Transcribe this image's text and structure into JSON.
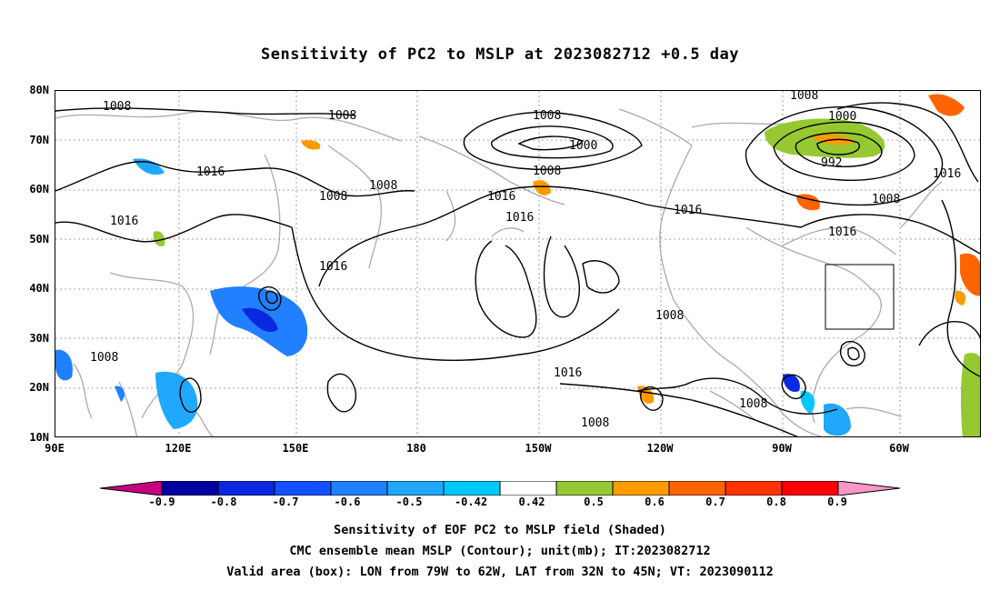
{
  "title": "Sensitivity of PC2 to MSLP at 2023082712 +0.5 day",
  "lat_ticks": [
    "80N",
    "70N",
    "60N",
    "50N",
    "40N",
    "30N",
    "20N",
    "10N"
  ],
  "lon_ticks": [
    "90E",
    "120E",
    "150E",
    "180",
    "150W",
    "120W",
    "90W",
    "60W"
  ],
  "contour_labels": [
    "1008",
    "1008",
    "1016",
    "1016",
    "1008",
    "1008",
    "1008",
    "1000",
    "1008",
    "1016",
    "1016",
    "1016",
    "1008",
    "1000",
    "992",
    "1008",
    "1016",
    "1016",
    "1008",
    "1016",
    "1008",
    "1008"
  ],
  "colorbar": {
    "ticks": [
      "-0.9",
      "-0.8",
      "-0.7",
      "-0.6",
      "-0.5",
      "-0.42",
      "0.42",
      "0.5",
      "0.6",
      "0.7",
      "0.8",
      "0.9"
    ],
    "colors": [
      "#0000a0",
      "#0a28e0",
      "#1450ff",
      "#2080ff",
      "#20a8ff",
      "#00c8ff",
      "#ffffff",
      "#96c832",
      "#ff9b00",
      "#ff6400",
      "#ff3200",
      "#ff0000"
    ],
    "low_color": "#c8007d",
    "high_color": "#ff96c8"
  },
  "footer": {
    "line1": "Sensitivity of EOF PC2 to MSLP field (Shaded)",
    "line2": "CMC ensemble mean MSLP (Contour); unit(mb); IT:2023082712",
    "line3": "Valid area (box): LON from 79W to 62W, LAT from 32N to 45N; VT: 2023090112"
  }
}
